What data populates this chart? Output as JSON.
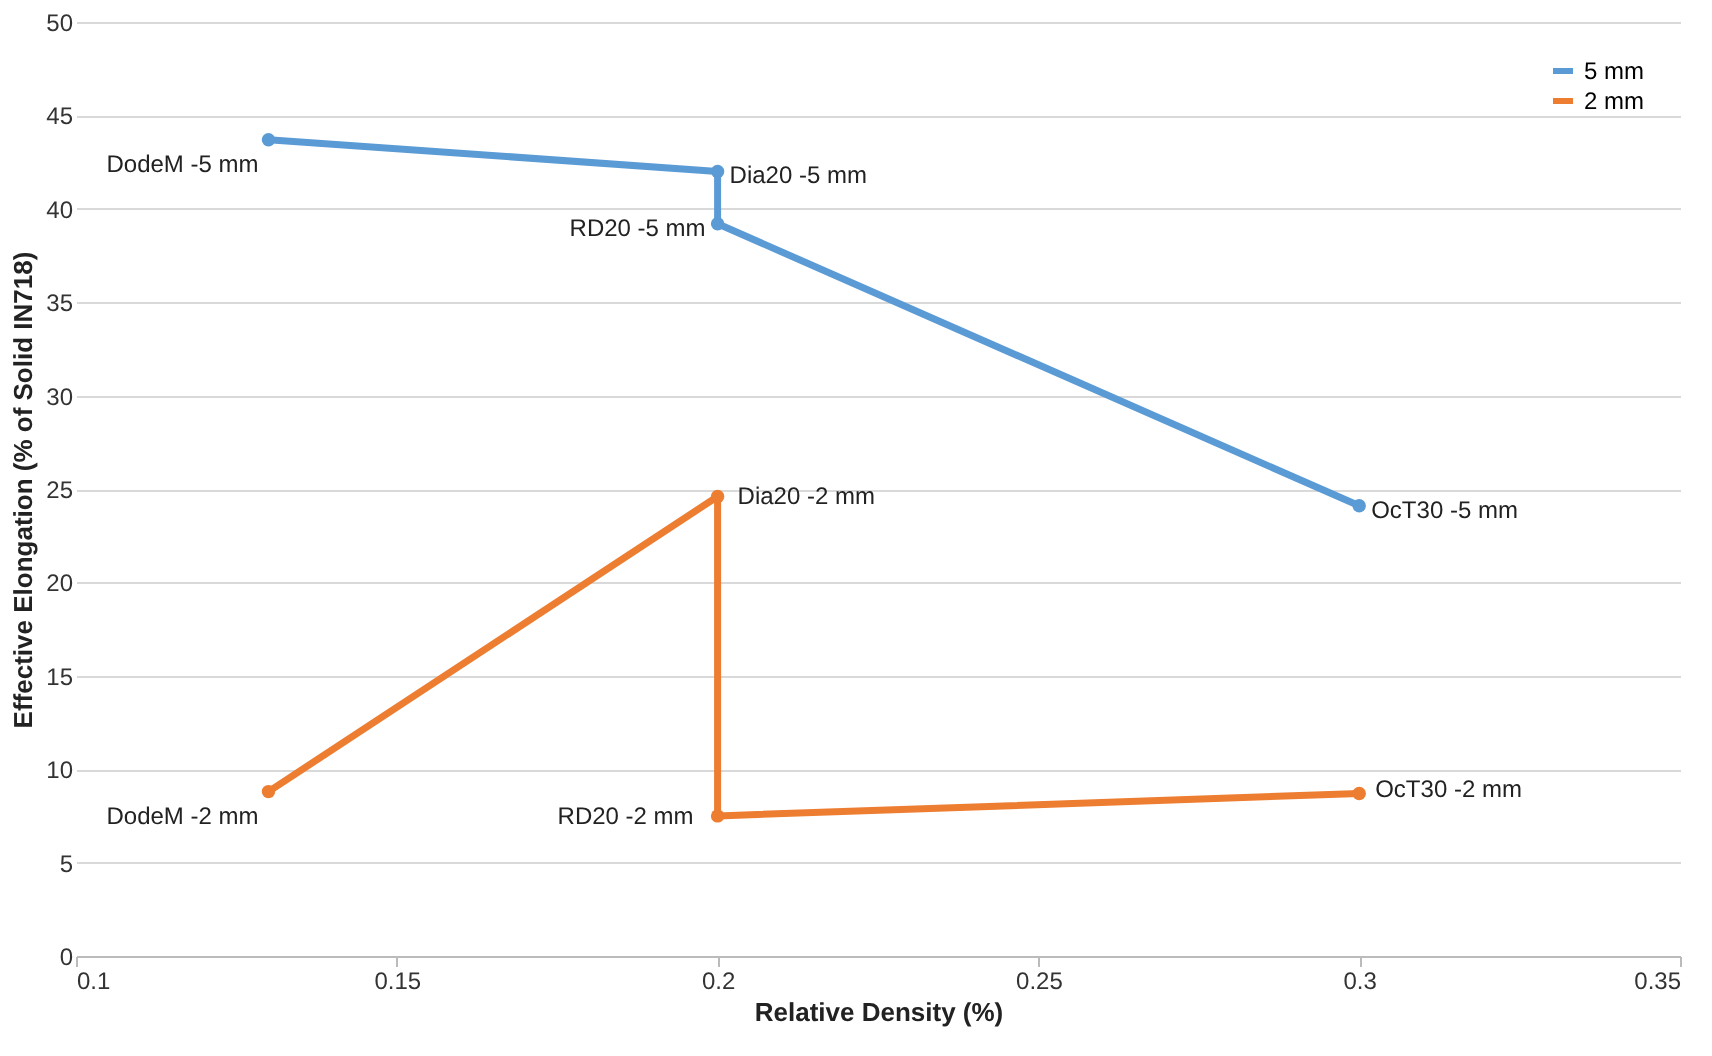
{
  "chart_data": {
    "type": "line",
    "xlabel": "Relative Density (%)",
    "ylabel": "Effective Elongation (% of Solid IN718)",
    "series": [
      {
        "name": "5 mm",
        "color": "#5b9bd5",
        "x": [
          0.13,
          0.2,
          0.2,
          0.3
        ],
        "values": [
          43.7,
          42.0,
          39.2,
          24.1
        ]
      },
      {
        "name": "2 mm",
        "color": "#ed7d31",
        "x": [
          0.13,
          0.2,
          0.2,
          0.3
        ],
        "values": [
          8.8,
          24.6,
          7.5,
          8.7
        ]
      }
    ],
    "annotations": [
      {
        "text": "DodeM -5 mm",
        "x": 0.13,
        "y": 43.7
      },
      {
        "text": "Dia20 -5 mm",
        "x": 0.2,
        "y": 42.0
      },
      {
        "text": "RD20 -5 mm",
        "x": 0.2,
        "y": 39.2
      },
      {
        "text": "OcT30 -5 mm",
        "x": 0.3,
        "y": 24.1
      },
      {
        "text": "Dia20 -2 mm",
        "x": 0.2,
        "y": 24.6
      },
      {
        "text": "DodeM -2 mm",
        "x": 0.13,
        "y": 8.8
      },
      {
        "text": "RD20 -2 mm",
        "x": 0.2,
        "y": 7.5
      },
      {
        "text": "OcT30 -2 mm",
        "x": 0.3,
        "y": 8.7
      }
    ],
    "xlim": [
      0.1,
      0.35
    ],
    "xticks": [
      0.1,
      0.15,
      0.2,
      0.25,
      0.3,
      0.35
    ],
    "ylim": [
      0,
      50
    ],
    "yticks": [
      0,
      5,
      10,
      15,
      20,
      25,
      30,
      35,
      40,
      45,
      50
    ],
    "grid": "y",
    "legend": "top right",
    "marker": "circle",
    "line_style": "solid"
  }
}
